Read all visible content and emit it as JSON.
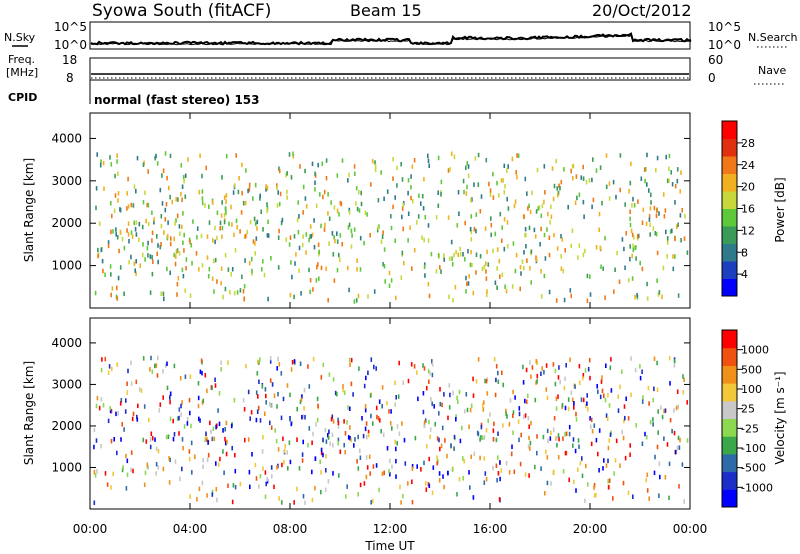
{
  "header": {
    "station": "Syowa South (fitACF)",
    "beam": "Beam 15",
    "date": "20/Oct/2012"
  },
  "side_labels": {
    "nsky": "N.Sky",
    "nsearch": "N.Search",
    "freq": "Freq.",
    "freq_unit": "[MHz]",
    "nave": "Nave",
    "cpid": "CPID",
    "cpid_text": "normal (fast stereo) 153"
  },
  "noise_axes": {
    "left_top": "10^5",
    "left_bottom": "10^0",
    "right_top": "10^5",
    "right_bottom": "10^0"
  },
  "freq_axes": {
    "left": [
      "18",
      "8"
    ],
    "right": [
      "60",
      "0"
    ]
  },
  "colors": {
    "power": [
      "#0000ff",
      "#1c3fbf",
      "#2e7a8a",
      "#3a9a5a",
      "#5ec83a",
      "#c8d83a",
      "#f0b020",
      "#f07818",
      "#e03010",
      "#ff0000"
    ],
    "velocity": [
      "#ff0000",
      "#f05010",
      "#f09018",
      "#f0c838",
      "#c8c8c8",
      "#8cd850",
      "#3aa84a",
      "#2e6aa8",
      "#1c2ec8",
      "#0000ff"
    ]
  },
  "chart_data": [
    {
      "type": "scatter",
      "title": "",
      "ylabel": "Slant Range [km]",
      "ylim": [
        0,
        4600
      ],
      "yticks": [
        "1000",
        "2000",
        "3000",
        "4000"
      ],
      "colorbar_label": "Power [dB]",
      "colorbar_ticks": [
        "4",
        "8",
        "12",
        "16",
        "20",
        "24",
        "28"
      ],
      "colorbar_range": [
        0,
        32
      ]
    },
    {
      "type": "scatter",
      "title": "",
      "ylabel": "Slant Range [km]",
      "ylim": [
        0,
        4600
      ],
      "yticks": [
        "1000",
        "2000",
        "3000",
        "4000"
      ],
      "colorbar_label": "Velocity [m s⁻¹]",
      "colorbar_ticks": [
        "1000",
        "500",
        "100",
        "25",
        "-25",
        "-100",
        "-500",
        "-1000"
      ]
    }
  ],
  "x_axis": {
    "label": "Time UT",
    "ticks": [
      "00:00",
      "04:00",
      "08:00",
      "12:00",
      "16:00",
      "20:00",
      "00:00"
    ]
  }
}
